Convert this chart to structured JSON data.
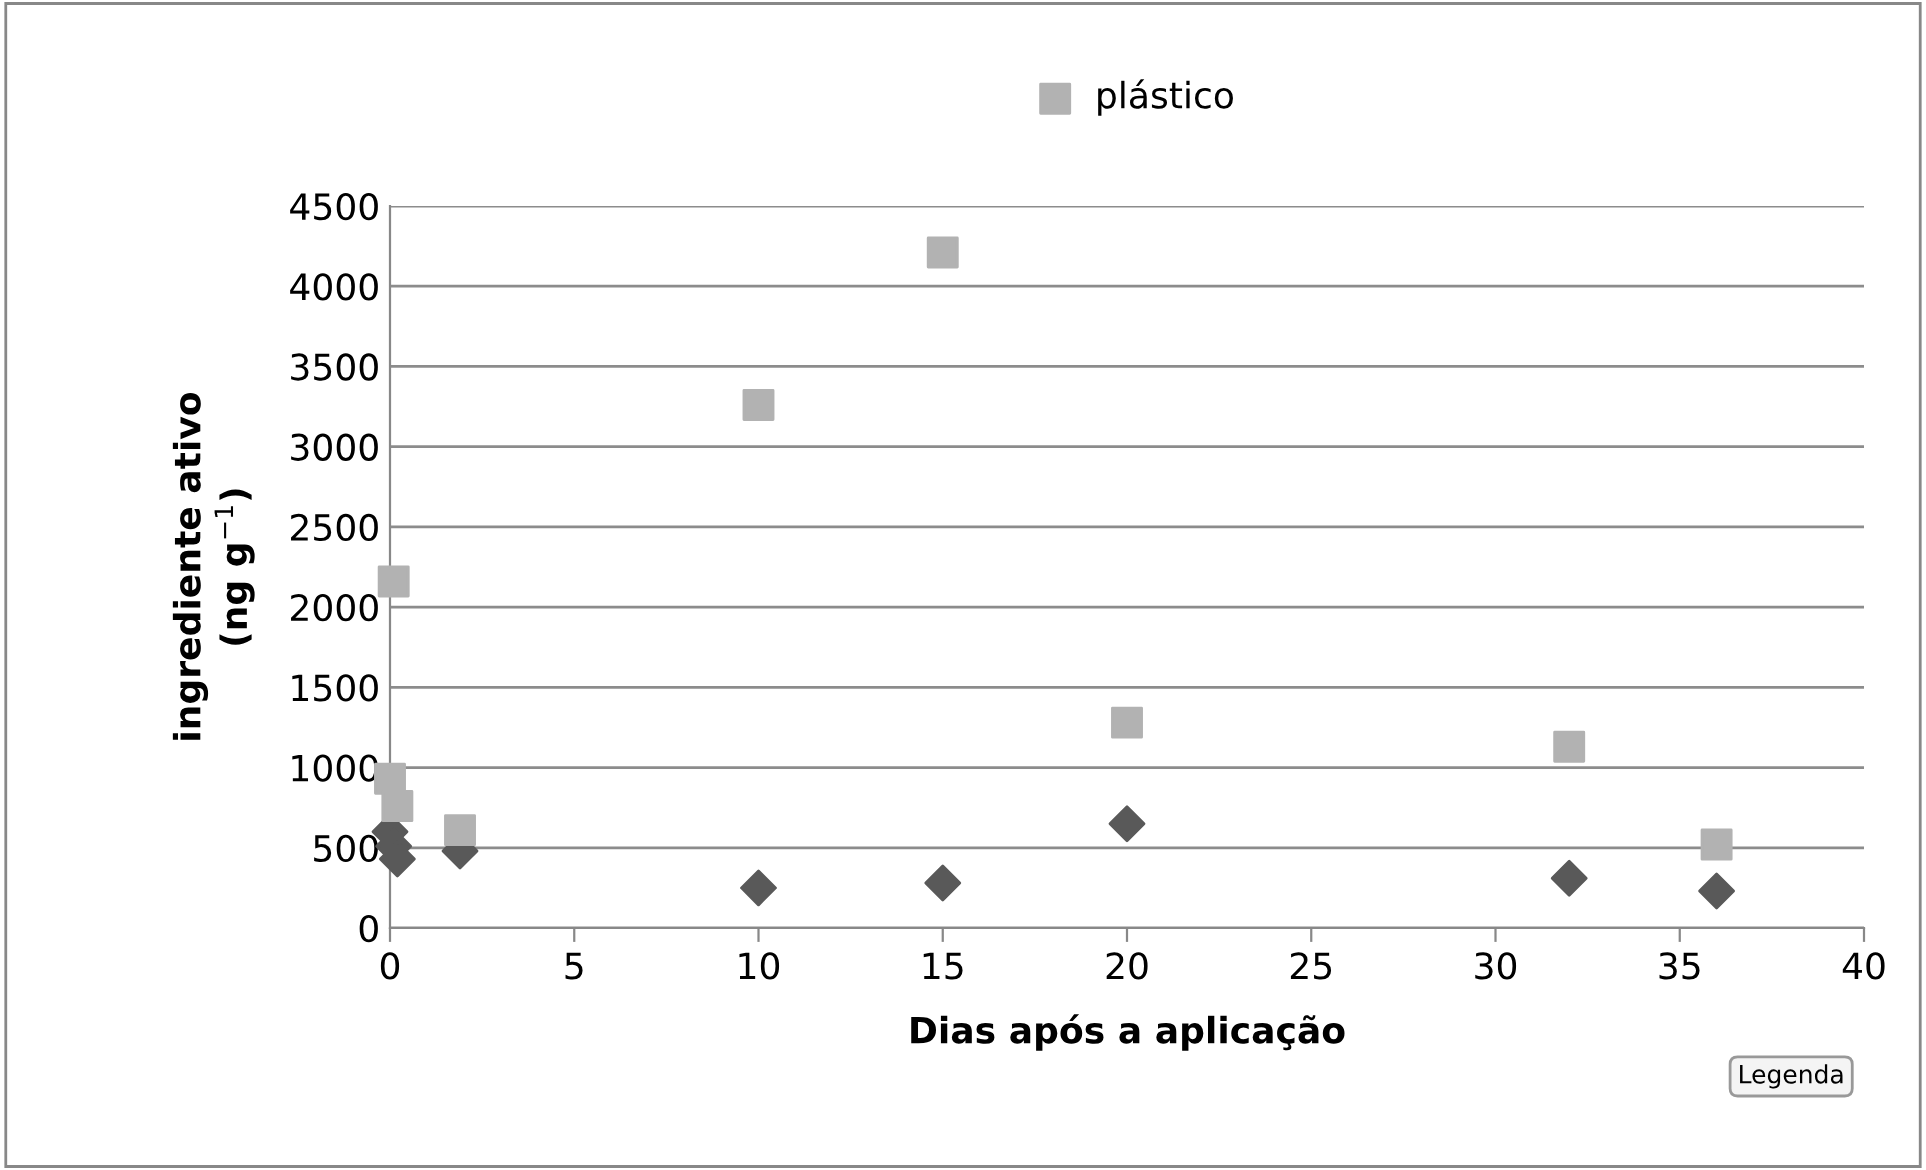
{
  "chart_data": {
    "type": "scatter",
    "xlabel": "Dias após a aplicação",
    "ylabel": "ingrediente ativo\n(ng g$^{−1}$)",
    "series": [
      {
        "color": "#595959",
        "marker": "diamond",
        "x": [
          0,
          0.1,
          0.2,
          1.9,
          10,
          15,
          20,
          32,
          36
        ],
        "values": [
          600,
          510,
          430,
          480,
          250,
          280,
          650,
          310,
          230
        ]
      },
      {
        "name": "plástico",
        "color": "#b2b2b2",
        "marker": "square",
        "x": [
          0,
          0.1,
          0.2,
          1.9,
          10,
          15,
          20,
          32,
          36
        ],
        "values": [
          930,
          2160,
          760,
          610,
          3260,
          4210,
          1280,
          1130,
          520
        ]
      }
    ],
    "xlim": [
      0,
      40
    ],
    "xticks": [
      0,
      5,
      10,
      15,
      20,
      25,
      30,
      35,
      40
    ],
    "ylim": [
      0,
      4500
    ],
    "yticks": [
      0,
      500,
      1000,
      1500,
      2000,
      2500,
      3000,
      3500,
      4000,
      4500
    ],
    "grid": "y",
    "legend": "top",
    "annotations": [
      "Legenda"
    ]
  }
}
